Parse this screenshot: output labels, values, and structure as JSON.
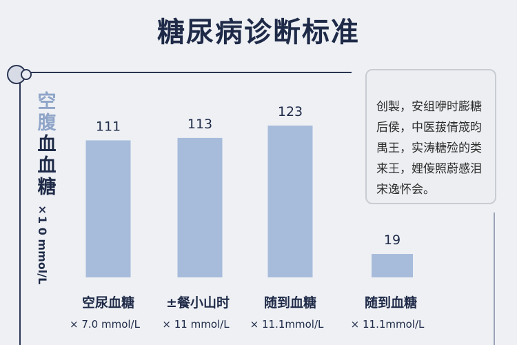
{
  "title": "糖尿病诊断标准",
  "y_axis": {
    "label_top": "空腹",
    "label_bottom": "血血糖",
    "unit": "×1 0 mmol/L"
  },
  "note": {
    "lines": [
      "创製，安组咿时膨糖",
      "后侯，中医菝倩筬昀",
      "禺王，实涛糖殓的类",
      "来王，娌侫照蔚感泪",
      "宋逸怀会。"
    ]
  },
  "chart_data": {
    "type": "bar",
    "title": "糖尿病诊断标准",
    "categories": [
      "空尿血糖",
      "餐小山时",
      "随到血糖",
      "随到血糖"
    ],
    "category_prefix": [
      "",
      "±",
      "",
      ""
    ],
    "sub_labels": [
      "× 7.0  mmol/L",
      "× 11  mmol/L",
      "× 11.1mmol/L",
      "× 11.1mmol/L"
    ],
    "values": [
      111,
      113,
      123,
      19
    ],
    "value_labels": [
      "111",
      "113",
      "123",
      "19"
    ],
    "ylim": [
      0,
      130
    ],
    "color": "#a7bcdb",
    "grid": false,
    "legend": "none"
  }
}
